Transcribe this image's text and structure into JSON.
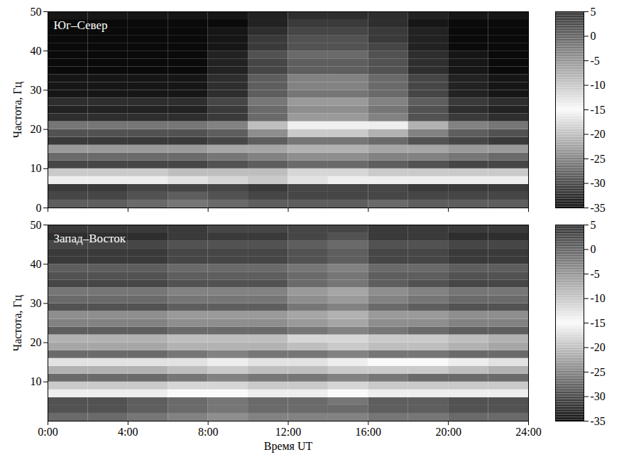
{
  "chart_data": [
    {
      "type": "heatmap",
      "annotation": "Юг–Север",
      "ylabel": "Частота, Гц",
      "tick_labels": "y",
      "xlim": [
        0,
        24
      ],
      "xticks": [
        0,
        4,
        8,
        12,
        16,
        20,
        24
      ],
      "ylim": [
        0,
        50
      ],
      "yticks": [
        0,
        10,
        20,
        30,
        40,
        50
      ],
      "x": [
        0,
        2,
        4,
        6,
        8,
        10,
        12,
        14,
        16,
        18,
        20,
        22
      ],
      "y": [
        0,
        2,
        4,
        6,
        8,
        10,
        12,
        14,
        16,
        18,
        20,
        22,
        24,
        26,
        28,
        30,
        32,
        34,
        36,
        38,
        40,
        42,
        44,
        46,
        48
      ],
      "cells": [
        [
          -28,
          -28,
          -27,
          -26,
          -27,
          -28,
          -28,
          -28,
          -27,
          -28,
          -28,
          -28
        ],
        [
          -30,
          -30,
          -29,
          -28,
          -29,
          -30,
          -30,
          -30,
          -30,
          -30,
          -30,
          -30
        ],
        [
          -31,
          -31,
          -30,
          -30,
          -30,
          -31,
          -30,
          -30,
          -30,
          -31,
          -31,
          -31
        ],
        [
          -16,
          -16,
          -16,
          -17,
          -18,
          -19,
          -17,
          -16,
          -16,
          -16,
          -16,
          -16
        ],
        [
          -19,
          -19,
          -19,
          -20,
          -20,
          -20,
          -18,
          -18,
          -19,
          -19,
          -19,
          -19
        ],
        [
          -30,
          -30,
          -30,
          -30,
          -29,
          -28,
          -27,
          -27,
          -28,
          -29,
          -30,
          -30
        ],
        [
          -27,
          -27,
          -27,
          -27,
          -26,
          -25,
          -24,
          -24,
          -25,
          -25,
          -26,
          -27
        ],
        [
          -23,
          -23,
          -23,
          -23,
          -22,
          -22,
          -21,
          -21,
          -22,
          -22,
          -23,
          -23
        ],
        [
          -31,
          -31,
          -31,
          -31,
          -30,
          -28,
          -26,
          -26,
          -27,
          -29,
          -30,
          -31
        ],
        [
          -29,
          -29,
          -29,
          -29,
          -28,
          -24,
          -19,
          -19,
          -21,
          -25,
          -28,
          -29
        ],
        [
          -26,
          -26,
          -26,
          -26,
          -25,
          -20,
          -14,
          -14,
          -16,
          -21,
          -25,
          -26
        ],
        [
          -32,
          -32,
          -32,
          -32,
          -31,
          -27,
          -23,
          -23,
          -25,
          -29,
          -31,
          -32
        ],
        [
          -33,
          -33,
          -33,
          -33,
          -31,
          -27,
          -24,
          -24,
          -26,
          -29,
          -32,
          -33
        ],
        [
          -32,
          -32,
          -32,
          -32,
          -30,
          -26,
          -23,
          -23,
          -25,
          -28,
          -31,
          -32
        ],
        [
          -34,
          -34,
          -34,
          -34,
          -32,
          -28,
          -26,
          -26,
          -27,
          -30,
          -33,
          -34
        ],
        [
          -34,
          -34,
          -34,
          -34,
          -32,
          -28,
          -25,
          -25,
          -27,
          -30,
          -33,
          -34
        ],
        [
          -34,
          -34,
          -34,
          -34,
          -32,
          -28,
          -25,
          -25,
          -27,
          -30,
          -33,
          -34
        ],
        [
          -35,
          -35,
          -35,
          -35,
          -33,
          -30,
          -28,
          -28,
          -29,
          -32,
          -34,
          -35
        ],
        [
          -35,
          -35,
          -35,
          -35,
          -33,
          -30,
          -28,
          -28,
          -29,
          -32,
          -34,
          -35
        ],
        [
          -35,
          -35,
          -35,
          -35,
          -33,
          -29,
          -27,
          -27,
          -29,
          -32,
          -34,
          -35
        ],
        [
          -35,
          -35,
          -35,
          -35,
          -34,
          -31,
          -29,
          -29,
          -30,
          -33,
          -35,
          -35
        ],
        [
          -35,
          -35,
          -35,
          -35,
          -34,
          -31,
          -29,
          -29,
          -31,
          -33,
          -35,
          -35
        ],
        [
          -35,
          -35,
          -35,
          -35,
          -34,
          -32,
          -30,
          -30,
          -31,
          -33,
          -35,
          -35
        ],
        [
          -35,
          -35,
          -35,
          -35,
          -35,
          -33,
          -31,
          -31,
          -32,
          -34,
          -35,
          -35
        ],
        [
          -34,
          -34,
          -34,
          -34,
          -34,
          -33,
          -32,
          -32,
          -32,
          -33,
          -34,
          -34
        ]
      ],
      "colorbar": {
        "range": [
          -35,
          5
        ],
        "ticks": [
          5,
          0,
          -5,
          -10,
          -15,
          -20,
          -25,
          -30,
          -35
        ]
      }
    },
    {
      "type": "heatmap",
      "annotation": "Запад–Восток",
      "ylabel": "Частота, Гц",
      "xlabel": "Время UT",
      "xlim": [
        0,
        24
      ],
      "xticks": [
        {
          "value": 0,
          "label": "0:00"
        },
        {
          "value": 4,
          "label": "4:00"
        },
        {
          "value": 8,
          "label": "8:00"
        },
        {
          "value": 12,
          "label": "12:00"
        },
        {
          "value": 16,
          "label": "16:00"
        },
        {
          "value": 20,
          "label": "20:00"
        },
        {
          "value": 24,
          "label": "24:00"
        }
      ],
      "ylim": [
        0,
        50
      ],
      "yticks": [
        10,
        20,
        30,
        40,
        50
      ],
      "x": [
        0,
        2,
        4,
        6,
        8,
        10,
        12,
        14,
        16,
        18,
        20,
        22
      ],
      "y": [
        0,
        2,
        4,
        6,
        8,
        10,
        12,
        14,
        16,
        18,
        20,
        22,
        24,
        26,
        28,
        30,
        32,
        34,
        36,
        38,
        40,
        42,
        44,
        46,
        48
      ],
      "cells": [
        [
          -27,
          -27,
          -26,
          -25,
          -24,
          -25,
          -25,
          -25,
          -26,
          -26,
          -27,
          -27
        ],
        [
          -29,
          -29,
          -28,
          -27,
          -26,
          -27,
          -27,
          -27,
          -28,
          -28,
          -29,
          -29
        ],
        [
          -29,
          -29,
          -28,
          -27,
          -26,
          -27,
          -27,
          -26,
          -28,
          -28,
          -29,
          -29
        ],
        [
          -16,
          -16,
          -16,
          -15,
          -15,
          -16,
          -16,
          -15,
          -16,
          -16,
          -16,
          -16
        ],
        [
          -19,
          -19,
          -19,
          -18,
          -18,
          -19,
          -19,
          -18,
          -19,
          -19,
          -19,
          -19
        ],
        [
          -27,
          -27,
          -27,
          -26,
          -25,
          -26,
          -26,
          -25,
          -26,
          -27,
          -27,
          -27
        ],
        [
          -21,
          -21,
          -21,
          -20,
          -19,
          -20,
          -20,
          -19,
          -19,
          -19,
          -20,
          -21
        ],
        [
          -17,
          -17,
          -17,
          -17,
          -16,
          -17,
          -17,
          -16,
          -15,
          -15,
          -16,
          -17
        ],
        [
          -27,
          -27,
          -27,
          -26,
          -25,
          -26,
          -26,
          -25,
          -26,
          -26,
          -27,
          -27
        ],
        [
          -22,
          -22,
          -22,
          -21,
          -21,
          -21,
          -20,
          -19,
          -20,
          -20,
          -21,
          -22
        ],
        [
          -21,
          -21,
          -21,
          -20,
          -20,
          -20,
          -18,
          -18,
          -19,
          -19,
          -20,
          -21
        ],
        [
          -28,
          -28,
          -28,
          -27,
          -27,
          -27,
          -26,
          -25,
          -26,
          -27,
          -28,
          -28
        ],
        [
          -25,
          -25,
          -25,
          -24,
          -24,
          -24,
          -23,
          -22,
          -24,
          -24,
          -25,
          -25
        ],
        [
          -24,
          -24,
          -24,
          -23,
          -23,
          -23,
          -22,
          -21,
          -23,
          -23,
          -24,
          -24
        ],
        [
          -29,
          -29,
          -29,
          -28,
          -28,
          -28,
          -26,
          -25,
          -27,
          -28,
          -29,
          -29
        ],
        [
          -27,
          -27,
          -27,
          -26,
          -26,
          -26,
          -24,
          -23,
          -25,
          -26,
          -27,
          -27
        ],
        [
          -26,
          -26,
          -26,
          -25,
          -25,
          -25,
          -23,
          -22,
          -24,
          -25,
          -26,
          -26
        ],
        [
          -30,
          -30,
          -30,
          -29,
          -29,
          -29,
          -27,
          -26,
          -28,
          -29,
          -30,
          -30
        ],
        [
          -29,
          -29,
          -29,
          -28,
          -28,
          -28,
          -27,
          -26,
          -28,
          -28,
          -29,
          -29
        ],
        [
          -28,
          -28,
          -28,
          -27,
          -27,
          -27,
          -26,
          -25,
          -27,
          -27,
          -28,
          -28
        ],
        [
          -31,
          -31,
          -31,
          -30,
          -30,
          -30,
          -29,
          -28,
          -30,
          -30,
          -31,
          -31
        ],
        [
          -31,
          -31,
          -31,
          -30,
          -30,
          -30,
          -29,
          -28,
          -30,
          -30,
          -31,
          -31
        ],
        [
          -30,
          -30,
          -30,
          -29,
          -29,
          -29,
          -28,
          -27,
          -29,
          -29,
          -30,
          -30
        ],
        [
          -32,
          -32,
          -32,
          -31,
          -31,
          -31,
          -30,
          -29,
          -31,
          -31,
          -32,
          -32
        ],
        [
          -31,
          -31,
          -31,
          -31,
          -30,
          -30,
          -30,
          -30,
          -31,
          -31,
          -31,
          -31
        ]
      ],
      "colorbar": {
        "range": [
          -35,
          5
        ],
        "ticks": [
          5,
          0,
          -5,
          -10,
          -15,
          -20,
          -25,
          -30,
          -35
        ]
      }
    }
  ]
}
